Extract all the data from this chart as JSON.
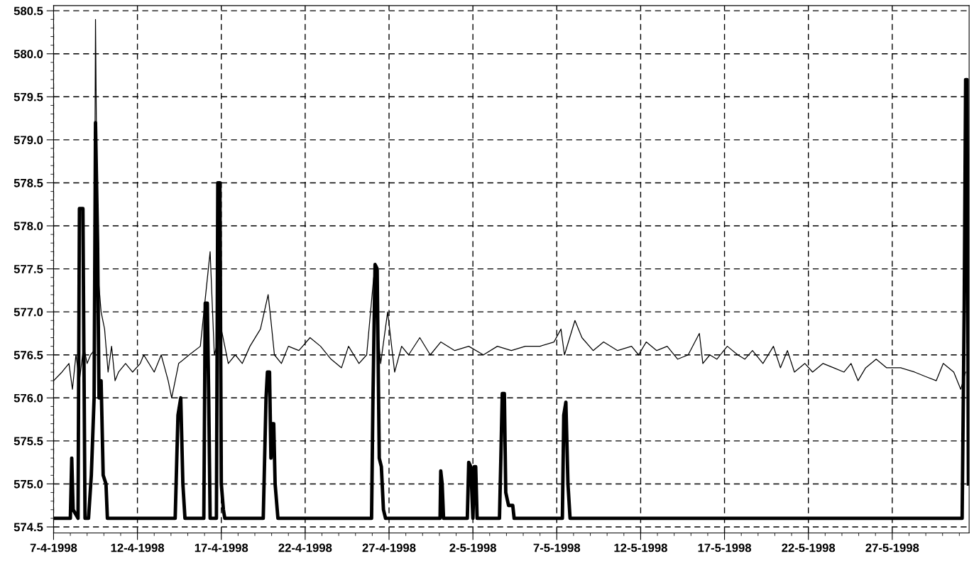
{
  "chart_data": {
    "type": "line",
    "grid": true,
    "line_style": "solid",
    "marker": "none",
    "xlim": [
      "1998-04-07",
      "1998-05-31T14:00"
    ],
    "ylim": [
      574.43,
      580.56
    ],
    "xticks": [
      {
        "value": "1998-04-07",
        "label": "7-4-1998"
      },
      {
        "value": "1998-04-12",
        "label": "12-4-1998"
      },
      {
        "value": "1998-04-17",
        "label": "17-4-1998"
      },
      {
        "value": "1998-04-22",
        "label": "22-4-1998"
      },
      {
        "value": "1998-04-27",
        "label": "27-4-1998"
      },
      {
        "value": "1998-05-02",
        "label": "2-5-1998"
      },
      {
        "value": "1998-05-07",
        "label": "7-5-1998"
      },
      {
        "value": "1998-05-12",
        "label": "12-5-1998"
      },
      {
        "value": "1998-05-17",
        "label": "17-5-1998"
      },
      {
        "value": "1998-05-22",
        "label": "22-5-1998"
      },
      {
        "value": "1998-05-27",
        "label": "27-5-1998"
      }
    ],
    "yticks": [
      {
        "value": 574.5,
        "label": "574.5"
      },
      {
        "value": 575.0,
        "label": "575.0"
      },
      {
        "value": 575.5,
        "label": "575.5"
      },
      {
        "value": 576.0,
        "label": "576.0"
      },
      {
        "value": 576.5,
        "label": "576.5"
      },
      {
        "value": 577.0,
        "label": "577.0"
      },
      {
        "value": 577.5,
        "label": "577.5"
      },
      {
        "value": 578.0,
        "label": "578.0"
      },
      {
        "value": 578.5,
        "label": "578.5"
      },
      {
        "value": 579.0,
        "label": "579.0"
      },
      {
        "value": 579.5,
        "label": "579.5"
      },
      {
        "value": 580.0,
        "label": "580.0"
      },
      {
        "value": 580.5,
        "label": "580.5"
      }
    ],
    "series": [
      {
        "color": "#000000",
        "x": [
          "1998-04-07T00:00",
          "1998-04-07T12:00",
          "1998-04-07T22:00",
          "1998-04-08T03:00",
          "1998-04-08T08:00",
          "1998-04-08T13:00",
          "1998-04-08T19:00",
          "1998-04-09T00:00",
          "1998-04-09T05:00",
          "1998-04-09T10:00",
          "1998-04-09T12:00",
          "1998-04-09T15:00",
          "1998-04-09T20:00",
          "1998-04-10T01:00",
          "1998-04-10T06:00",
          "1998-04-10T11:00",
          "1998-04-10T16:00",
          "1998-04-10T21:00",
          "1998-04-11T07:00",
          "1998-04-11T17:00",
          "1998-04-12T04:00",
          "1998-04-12T09:00",
          "1998-04-13T00:00",
          "1998-04-13T10:00",
          "1998-04-13T20:00",
          "1998-04-14T01:00",
          "1998-04-14T11:00",
          "1998-04-15T02:00",
          "1998-04-15T18:00",
          "1998-04-16T08:00",
          "1998-04-16T14:00",
          "1998-04-17T00:00",
          "1998-04-17T10:00",
          "1998-04-17T20:00",
          "1998-04-18T06:00",
          "1998-04-18T17:00",
          "1998-04-19T08:00",
          "1998-04-19T19:00",
          "1998-04-19T23:00",
          "1998-04-20T04:00",
          "1998-04-20T14:00",
          "1998-04-21T00:00",
          "1998-04-21T15:00",
          "1998-04-22T07:00",
          "1998-04-22T22:00",
          "1998-04-23T13:00",
          "1998-04-24T04:00",
          "1998-04-24T14:00",
          "1998-04-25T05:00",
          "1998-04-25T16:00",
          "1998-04-26T02:00",
          "1998-04-26T12:00",
          "1998-04-26T22:00",
          "1998-04-27T08:00",
          "1998-04-27T18:00",
          "1998-04-28T04:00",
          "1998-04-28T20:00",
          "1998-04-29T11:00",
          "1998-04-30T02:00",
          "1998-04-30T22:00",
          "1998-05-01T18:00",
          "1998-05-02T15:00",
          "1998-05-03T11:00",
          "1998-05-04T07:00",
          "1998-05-05T03:00",
          "1998-05-06T00:00",
          "1998-05-06T20:00",
          "1998-05-07T06:00",
          "1998-05-07T11:00",
          "1998-05-08T02:00",
          "1998-05-08T12:00",
          "1998-05-09T04:00",
          "1998-05-09T19:00",
          "1998-05-10T15:00",
          "1998-05-11T11:00",
          "1998-05-11T21:00",
          "1998-05-12T08:00",
          "1998-05-12T23:00",
          "1998-05-13T14:00",
          "1998-05-14T05:00",
          "1998-05-14T20:00",
          "1998-05-15T12:00",
          "1998-05-15T17:00",
          "1998-05-16T03:00",
          "1998-05-16T13:00",
          "1998-05-17T04:00",
          "1998-05-17T19:00",
          "1998-05-18T05:00",
          "1998-05-18T16:00",
          "1998-05-19T07:00",
          "1998-05-19T22:00",
          "1998-05-20T08:00",
          "1998-05-20T18:00",
          "1998-05-21T04:00",
          "1998-05-21T19:00",
          "1998-05-22T06:00",
          "1998-05-22T21:00",
          "1998-05-23T12:00",
          "1998-05-24T03:00",
          "1998-05-24T13:00",
          "1998-05-24T23:00",
          "1998-05-25T10:00",
          "1998-05-26T01:00",
          "1998-05-26T16:00",
          "1998-05-27T12:00",
          "1998-05-28T08:00",
          "1998-05-28T23:00",
          "1998-05-29T15:00",
          "1998-05-30T01:00",
          "1998-05-30T16:00",
          "1998-05-31T02:00",
          "1998-05-31T09:00"
        ],
        "values": [
          576.2,
          576.3,
          576.4,
          576.1,
          576.5,
          576.2,
          576.6,
          576.4,
          576.5,
          576.55,
          580.4,
          577.5,
          577.0,
          576.8,
          576.3,
          576.6,
          576.2,
          576.3,
          576.4,
          576.3,
          576.4,
          576.5,
          576.3,
          576.5,
          576.2,
          576.0,
          576.4,
          576.5,
          576.6,
          577.7,
          576.5,
          576.8,
          576.4,
          576.5,
          576.4,
          576.6,
          576.8,
          577.2,
          576.9,
          576.5,
          576.4,
          576.6,
          576.55,
          576.7,
          576.6,
          576.45,
          576.35,
          576.6,
          576.4,
          576.5,
          577.4,
          576.4,
          577.0,
          576.3,
          576.6,
          576.5,
          576.7,
          576.5,
          576.65,
          576.55,
          576.6,
          576.5,
          576.6,
          576.55,
          576.6,
          576.6,
          576.65,
          576.8,
          576.5,
          576.9,
          576.7,
          576.55,
          576.65,
          576.55,
          576.6,
          576.5,
          576.65,
          576.55,
          576.6,
          576.45,
          576.5,
          576.75,
          576.4,
          576.5,
          576.45,
          576.6,
          576.5,
          576.45,
          576.55,
          576.4,
          576.6,
          576.35,
          576.55,
          576.3,
          576.4,
          576.3,
          576.4,
          576.35,
          576.3,
          576.4,
          576.2,
          576.35,
          576.45,
          576.35,
          576.35,
          576.3,
          576.25,
          576.2,
          576.4,
          576.3,
          576.1,
          576.3
        ]
      },
      {
        "color": "#000000",
        "x": [
          "1998-04-07T00:00",
          "1998-04-08T00:00",
          "1998-04-08T02:00",
          "1998-04-08T04:00",
          "1998-04-08T11:00",
          "1998-04-08T13:00",
          "1998-04-08T18:00",
          "1998-04-08T21:00",
          "1998-04-09T02:00",
          "1998-04-09T06:00",
          "1998-04-09T10:00",
          "1998-04-09T12:00",
          "1998-04-09T15:00",
          "1998-04-09T17:00",
          "1998-04-09T20:00",
          "1998-04-09T23:00",
          "1998-04-10T03:00",
          "1998-04-10T05:00",
          "1998-04-14T06:00",
          "1998-04-14T10:00",
          "1998-04-14T14:00",
          "1998-04-14T17:00",
          "1998-04-14T20:00",
          "1998-04-15T23:00",
          "1998-04-16T01:00",
          "1998-04-16T04:00",
          "1998-04-16T06:00",
          "1998-04-16T08:00",
          "1998-04-16T17:00",
          "1998-04-16T19:00",
          "1998-04-16T22:00",
          "1998-04-17T00:00",
          "1998-04-17T03:00",
          "1998-04-17T05:00",
          "1998-04-19T12:00",
          "1998-04-19T14:00",
          "1998-04-19T16:00",
          "1998-04-19T18:00",
          "1998-04-19T21:00",
          "1998-04-19T23:00",
          "1998-04-20T01:00",
          "1998-04-20T03:00",
          "1998-04-20T05:00",
          "1998-04-20T09:00",
          "1998-04-25T23:00",
          "1998-04-26T01:00",
          "1998-04-26T04:00",
          "1998-04-26T07:00",
          "1998-04-26T10:00",
          "1998-04-26T13:00",
          "1998-04-26T16:00",
          "1998-04-26T19:00",
          "1998-04-30T01:00",
          "1998-04-30T02:00",
          "1998-04-30T04:00",
          "1998-04-30T06:00",
          "1998-05-01T16:00",
          "1998-05-01T18:00",
          "1998-05-01T21:00",
          "1998-05-02T00:00",
          "1998-05-02T02:00",
          "1998-05-02T04:00",
          "1998-05-02T06:00",
          "1998-05-03T14:00",
          "1998-05-03T16:00",
          "1998-05-03T18:00",
          "1998-05-03T21:00",
          "1998-05-03T23:00",
          "1998-05-04T03:00",
          "1998-05-04T09:00",
          "1998-05-04T11:00",
          "1998-05-07T08:00",
          "1998-05-07T10:00",
          "1998-05-07T13:00",
          "1998-05-07T16:00",
          "1998-05-07T19:00",
          "1998-05-31T04:00",
          "1998-05-31T07:00",
          "1998-05-31T09:00",
          "1998-05-31T11:00",
          "1998-05-31T13:00"
        ],
        "values": [
          574.6,
          574.6,
          575.3,
          574.7,
          574.6,
          578.2,
          578.2,
          574.6,
          574.6,
          575.1,
          576.0,
          579.2,
          577.8,
          576.0,
          576.2,
          575.1,
          575.0,
          574.6,
          574.6,
          575.8,
          576.0,
          575.0,
          574.6,
          574.6,
          577.1,
          577.1,
          576.0,
          574.6,
          574.6,
          578.5,
          578.5,
          575.0,
          574.7,
          574.6,
          574.6,
          575.3,
          576.0,
          576.3,
          576.3,
          575.3,
          575.7,
          575.7,
          575.0,
          574.6,
          574.6,
          576.0,
          577.55,
          577.5,
          575.3,
          575.2,
          574.7,
          574.6,
          574.6,
          575.15,
          575.0,
          574.6,
          574.6,
          575.25,
          575.2,
          574.6,
          575.2,
          575.2,
          574.6,
          574.6,
          575.3,
          576.05,
          576.05,
          574.9,
          574.75,
          574.75,
          574.6,
          574.6,
          575.8,
          575.95,
          575.0,
          574.6,
          574.6,
          577.1,
          579.7,
          579.7,
          575.0
        ]
      }
    ]
  }
}
